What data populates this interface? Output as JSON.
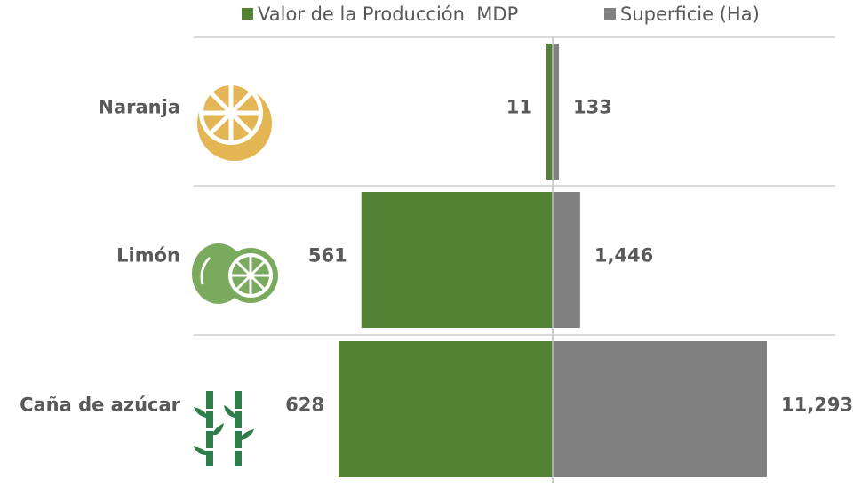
{
  "chart_data": {
    "type": "bar",
    "categories": [
      "Naranja",
      "Limón",
      "Caña de azúcar"
    ],
    "series": [
      {
        "name": "Valor de la Producción  MDP",
        "color": "#548235",
        "values": [
          11,
          561,
          628
        ]
      },
      {
        "name": "Superficie (Ha)",
        "color": "#808080",
        "values": [
          133,
          1446,
          11293
        ],
        "value_labels": [
          "133",
          "1,446",
          "11,293"
        ]
      }
    ],
    "legend": "top"
  }
}
